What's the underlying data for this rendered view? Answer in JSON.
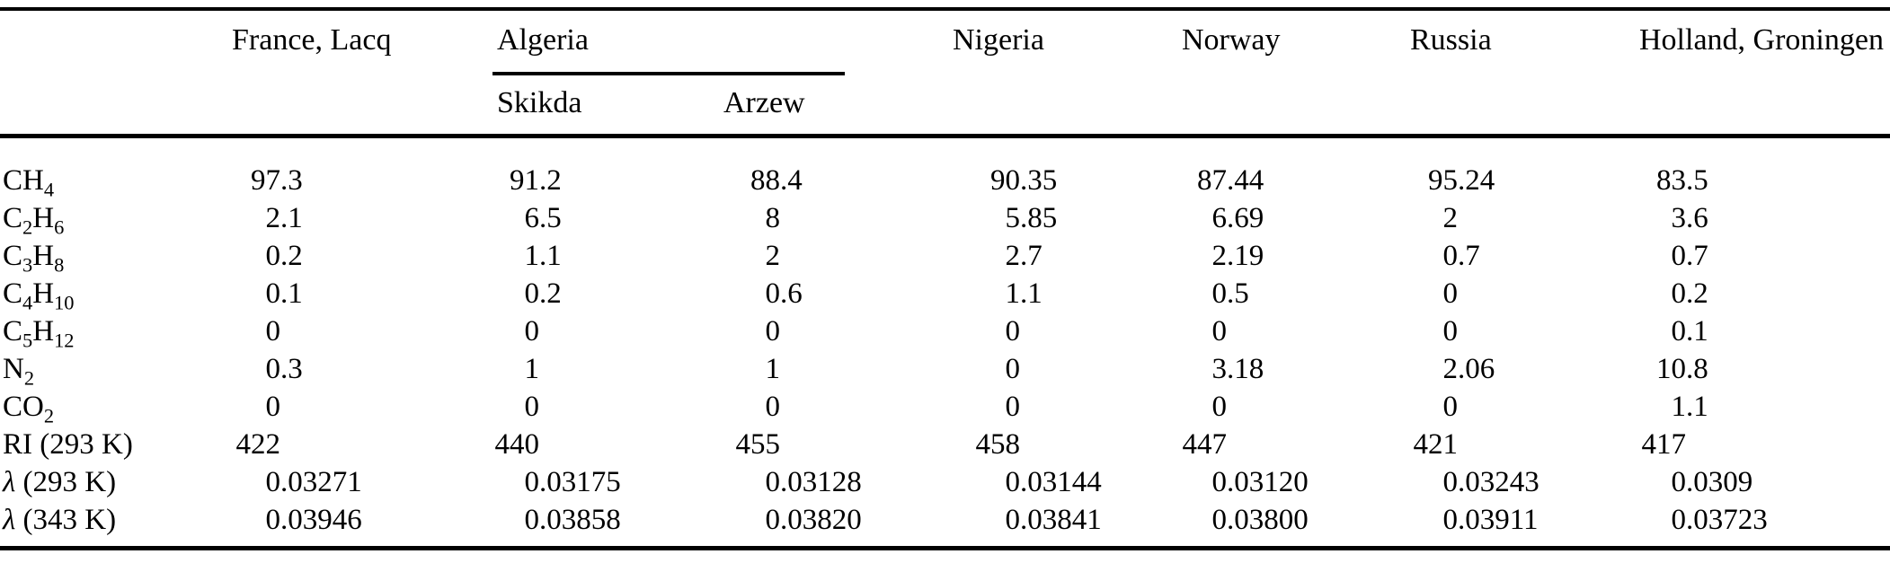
{
  "table": {
    "group_headers": [
      "France, Lacq",
      "Algeria",
      "Nigeria",
      "Norway",
      "Russia",
      "Holland, Groningen"
    ],
    "sub_headers": [
      "Skikda",
      "Arzew"
    ],
    "row_header_blank": "",
    "rows": [
      {
        "label": "CH_{4}",
        "values": [
          "97.3",
          "91.2",
          "88.4",
          "90.35",
          "87.44",
          "95.24",
          "83.5"
        ]
      },
      {
        "label": "C_{2}H_{6}",
        "values": [
          "2.1",
          "6.5",
          "8",
          "5.85",
          "6.69",
          "2",
          "3.6"
        ]
      },
      {
        "label": "C_{3}H_{8}",
        "values": [
          "0.2",
          "1.1",
          "2",
          "2.7",
          "2.19",
          "0.7",
          "0.7"
        ]
      },
      {
        "label": "C_{4}H_{10}",
        "values": [
          "0.1",
          "0.2",
          "0.6",
          "1.1",
          "0.5",
          "0",
          "0.2"
        ]
      },
      {
        "label": "C_{5}H_{12}",
        "values": [
          "0",
          "0",
          "0",
          "0",
          "0",
          "0",
          "0.1"
        ]
      },
      {
        "label": "N_{2}",
        "values": [
          "0.3",
          "1",
          "1",
          "0",
          "3.18",
          "2.06",
          "10.8"
        ]
      },
      {
        "label": "CO_{2}",
        "values": [
          "0",
          "0",
          "0",
          "0",
          "0",
          "0",
          "1.1"
        ]
      },
      {
        "label": "RI (293 K)",
        "values": [
          "422",
          "440",
          "455",
          "458",
          "447",
          "421",
          "417"
        ]
      },
      {
        "label": "λ (293 K)",
        "values": [
          "0.03271",
          "0.03175",
          "0.03128",
          "0.03144",
          "0.03120",
          "0.03243",
          "0.0309"
        ]
      },
      {
        "label": "λ (343 K)",
        "values": [
          "0.03946",
          "0.03858",
          "0.03820",
          "0.03841",
          "0.03800",
          "0.03911",
          "0.03723"
        ]
      }
    ]
  },
  "colors": {
    "text": "#000000",
    "background": "#ffffff",
    "rule": "#000000"
  }
}
